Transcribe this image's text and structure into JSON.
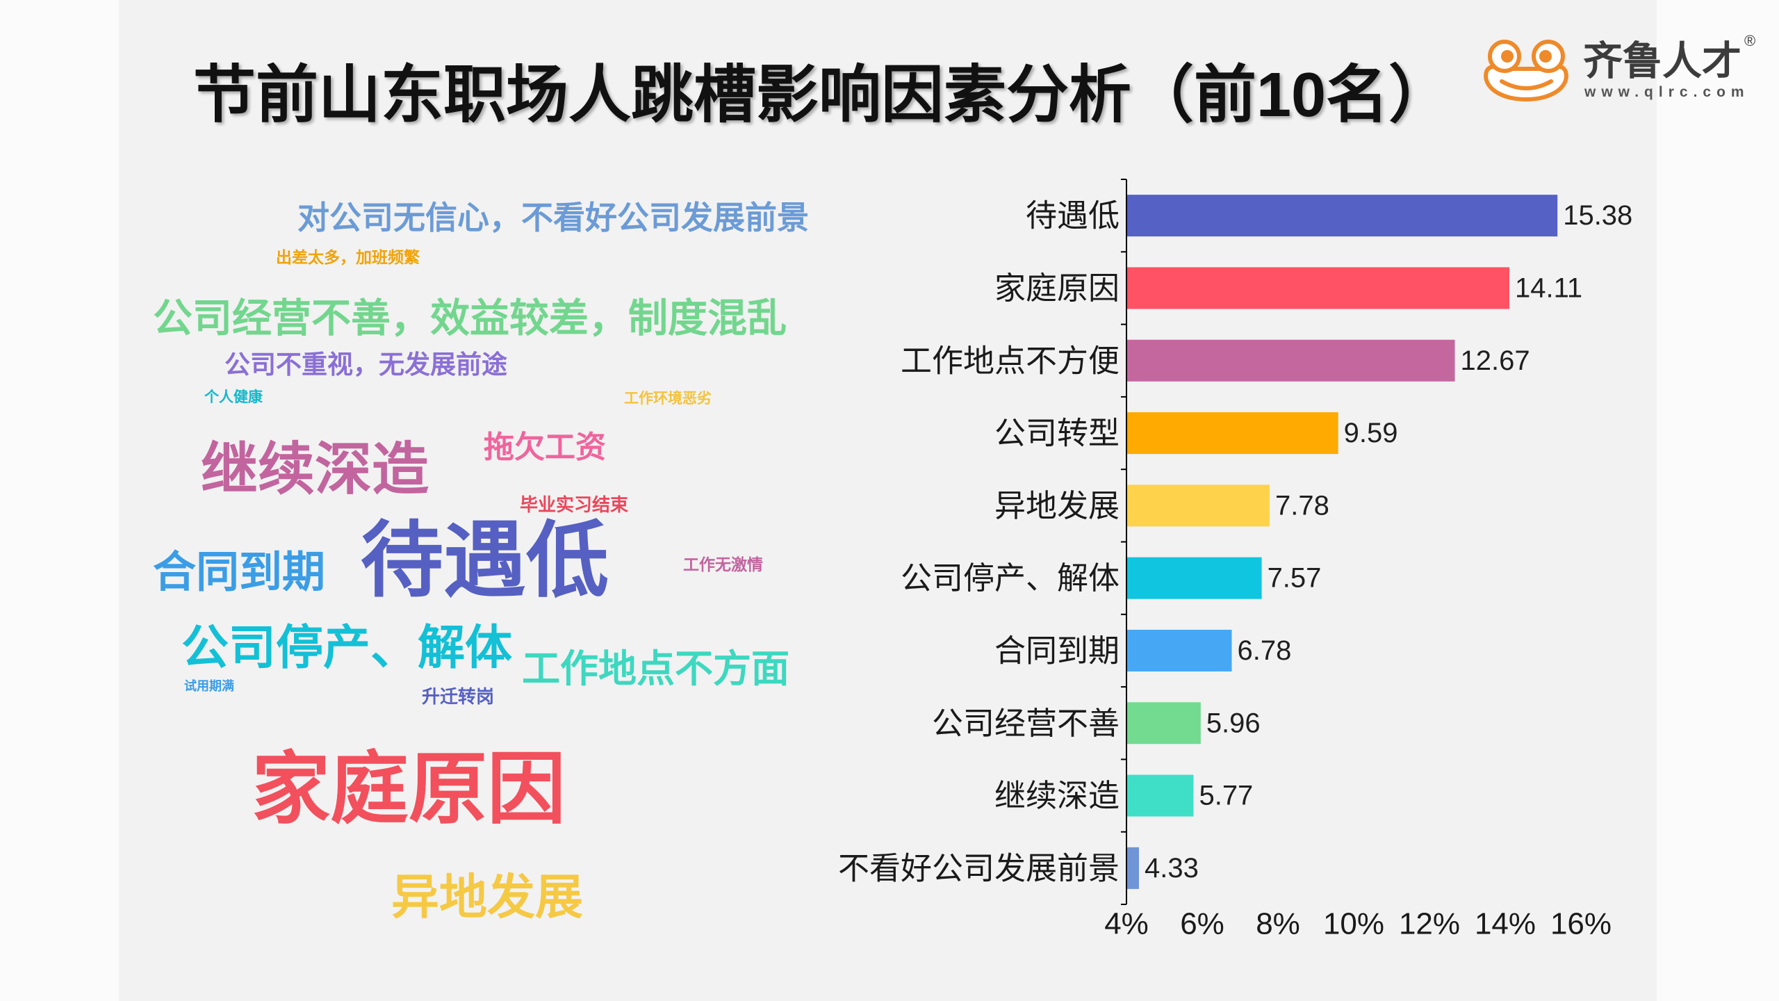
{
  "chart_data": {
    "type": "bar",
    "orientation": "horizontal",
    "title": "节前山东职场人跳槽影响因素分析（前10名）",
    "categories": [
      "待遇低",
      "家庭原因",
      "工作地点不方便",
      "公司转型",
      "异地发展",
      "公司停产、解体",
      "合同到期",
      "公司经营不善",
      "继续深造",
      "不看好公司发展前景"
    ],
    "values": [
      15.38,
      14.11,
      12.67,
      9.59,
      7.78,
      7.57,
      6.78,
      5.96,
      5.77,
      4.33
    ],
    "colors": [
      "#5661c5",
      "#ff5264",
      "#c4679f",
      "#ffaa00",
      "#ffd24c",
      "#10c5df",
      "#46a8f4",
      "#72db8f",
      "#3fdfc7",
      "#6f95d7"
    ],
    "xlim": [
      4,
      16
    ],
    "xticks": [
      4,
      6,
      8,
      10,
      12,
      14,
      16
    ],
    "xtick_labels": [
      "4%",
      "6%",
      "8%",
      "10%",
      "12%",
      "14%",
      "16%"
    ],
    "grid": false
  },
  "word_cloud": {
    "words": [
      {
        "text": "对公司无信心，不看好公司发展前景",
        "color": "#6b9bd6"
      },
      {
        "text": "出差太多，加班频繁",
        "color": "#f0a30a"
      },
      {
        "text": "公司经营不善，效益较差，制度混乱",
        "color": "#72d68e"
      },
      {
        "text": "公司不重视，无发展前途",
        "color": "#8a6fd6"
      },
      {
        "text": "个人健康",
        "color": "#15b8cc"
      },
      {
        "text": "工作环境恶劣",
        "color": "#f4c23b"
      },
      {
        "text": "拖欠工资",
        "color": "#f0649c"
      },
      {
        "text": "继续深造",
        "color": "#c2649e"
      },
      {
        "text": "毕业实习结束",
        "color": "#e8475a"
      },
      {
        "text": "合同到期",
        "color": "#3a9de6"
      },
      {
        "text": "待遇低",
        "color": "#5560c2"
      },
      {
        "text": "工作无激情",
        "color": "#c2649e"
      },
      {
        "text": "公司停产、解体",
        "color": "#13c0d6"
      },
      {
        "text": "工作地点不方面",
        "color": "#3dd8bf"
      },
      {
        "text": "试用期满",
        "color": "#3a9de6"
      },
      {
        "text": "升迁转岗",
        "color": "#5560c2"
      },
      {
        "text": "家庭原因",
        "color": "#f2505c"
      },
      {
        "text": "异地发展",
        "color": "#f6c944"
      }
    ]
  },
  "logo": {
    "icon": "frog-logo-icon",
    "name": "齐鲁人才",
    "registered_mark": "®",
    "url": "www.qlrc.com",
    "color": "#ef8a2a"
  }
}
